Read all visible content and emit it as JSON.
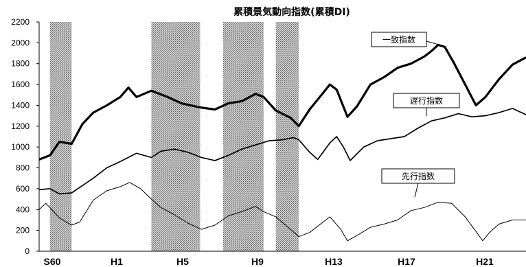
{
  "chart_data": {
    "type": "line",
    "title": "累積景気動向指数(累積DI)",
    "x_ticks": [
      "S60",
      "H1",
      "H5",
      "H9",
      "H13",
      "H17",
      "H21"
    ],
    "xlim": [
      "S60",
      "H22.5"
    ],
    "y_ticks": [
      "0",
      "200",
      "400",
      "600",
      "800",
      "1000",
      "1200",
      "1400",
      "1600",
      "1800",
      "2000",
      "2200"
    ],
    "ylim": [
      0,
      2200
    ],
    "grid": false,
    "shaded_periods": [
      {
        "start": 0.8,
        "end": 2.4
      },
      {
        "start": 8.3,
        "end": 11.9
      },
      {
        "start": 13.6,
        "end": 16.6
      },
      {
        "start": 17.5,
        "end": 19.2
      }
    ],
    "series": [
      {
        "name": "一致指数",
        "points": [
          [
            0,
            880
          ],
          [
            0.8,
            920
          ],
          [
            1.5,
            1050
          ],
          [
            2.4,
            1030
          ],
          [
            3.2,
            1220
          ],
          [
            4,
            1330
          ],
          [
            5,
            1400
          ],
          [
            6,
            1480
          ],
          [
            6.6,
            1570
          ],
          [
            7.2,
            1480
          ],
          [
            8.3,
            1540
          ],
          [
            9.5,
            1480
          ],
          [
            10.5,
            1420
          ],
          [
            11.9,
            1380
          ],
          [
            13,
            1360
          ],
          [
            14,
            1420
          ],
          [
            15,
            1440
          ],
          [
            16,
            1510
          ],
          [
            16.6,
            1480
          ],
          [
            17.5,
            1350
          ],
          [
            18.6,
            1280
          ],
          [
            19.2,
            1200
          ],
          [
            20,
            1360
          ],
          [
            21,
            1520
          ],
          [
            21.5,
            1600
          ],
          [
            22,
            1550
          ],
          [
            22.8,
            1290
          ],
          [
            23.5,
            1390
          ],
          [
            24.5,
            1600
          ],
          [
            25.5,
            1670
          ],
          [
            26.5,
            1760
          ],
          [
            27.5,
            1800
          ],
          [
            28.5,
            1870
          ],
          [
            29,
            1920
          ],
          [
            29.5,
            1980
          ],
          [
            30,
            1960
          ],
          [
            30.7,
            1800
          ],
          [
            31.5,
            1600
          ],
          [
            32.3,
            1400
          ],
          [
            33,
            1480
          ],
          [
            34,
            1650
          ],
          [
            35,
            1790
          ],
          [
            36,
            1860
          ]
        ]
      },
      {
        "name": "遅行指数",
        "points": [
          [
            0,
            590
          ],
          [
            0.8,
            600
          ],
          [
            1.5,
            550
          ],
          [
            2.4,
            560
          ],
          [
            3.2,
            630
          ],
          [
            4,
            700
          ],
          [
            5,
            800
          ],
          [
            6,
            860
          ],
          [
            7.2,
            940
          ],
          [
            8.3,
            900
          ],
          [
            9,
            960
          ],
          [
            10,
            980
          ],
          [
            11,
            950
          ],
          [
            12,
            900
          ],
          [
            13,
            870
          ],
          [
            14,
            920
          ],
          [
            15,
            980
          ],
          [
            16,
            1020
          ],
          [
            17,
            1060
          ],
          [
            18,
            1070
          ],
          [
            18.8,
            1090
          ],
          [
            19.2,
            1070
          ],
          [
            20,
            950
          ],
          [
            20.6,
            880
          ],
          [
            21.5,
            1040
          ],
          [
            22,
            1100
          ],
          [
            22.5,
            1000
          ],
          [
            23,
            870
          ],
          [
            24,
            1000
          ],
          [
            25,
            1060
          ],
          [
            26,
            1080
          ],
          [
            27,
            1100
          ],
          [
            28,
            1180
          ],
          [
            29,
            1250
          ],
          [
            30,
            1280
          ],
          [
            31,
            1320
          ],
          [
            32,
            1290
          ],
          [
            33,
            1300
          ],
          [
            34,
            1330
          ],
          [
            35,
            1370
          ],
          [
            36,
            1310
          ]
        ]
      },
      {
        "name": "先行指数",
        "points": [
          [
            0,
            400
          ],
          [
            0.5,
            460
          ],
          [
            1.5,
            320
          ],
          [
            2.4,
            250
          ],
          [
            3,
            280
          ],
          [
            4,
            490
          ],
          [
            5,
            580
          ],
          [
            6,
            620
          ],
          [
            6.7,
            660
          ],
          [
            7.5,
            600
          ],
          [
            8.3,
            500
          ],
          [
            9,
            420
          ],
          [
            10,
            350
          ],
          [
            11,
            270
          ],
          [
            12,
            210
          ],
          [
            13,
            250
          ],
          [
            14,
            340
          ],
          [
            15,
            380
          ],
          [
            16,
            430
          ],
          [
            16.6,
            380
          ],
          [
            17.5,
            330
          ],
          [
            18.5,
            220
          ],
          [
            19.2,
            140
          ],
          [
            20,
            180
          ],
          [
            21,
            280
          ],
          [
            21.5,
            330
          ],
          [
            22.3,
            210
          ],
          [
            22.8,
            100
          ],
          [
            23.5,
            150
          ],
          [
            24.5,
            230
          ],
          [
            25.5,
            260
          ],
          [
            26.5,
            300
          ],
          [
            27.5,
            390
          ],
          [
            28.5,
            420
          ],
          [
            29.5,
            470
          ],
          [
            30.5,
            460
          ],
          [
            31.5,
            330
          ],
          [
            32.3,
            190
          ],
          [
            32.8,
            100
          ],
          [
            33.3,
            180
          ],
          [
            34,
            260
          ],
          [
            35,
            300
          ],
          [
            36,
            300
          ]
        ]
      }
    ],
    "annotations": [
      {
        "text": "一致指数",
        "series": "一致指数"
      },
      {
        "text": "遅行指数",
        "series": "遅行指数"
      },
      {
        "text": "先行指数",
        "series": "先行指数"
      }
    ]
  }
}
